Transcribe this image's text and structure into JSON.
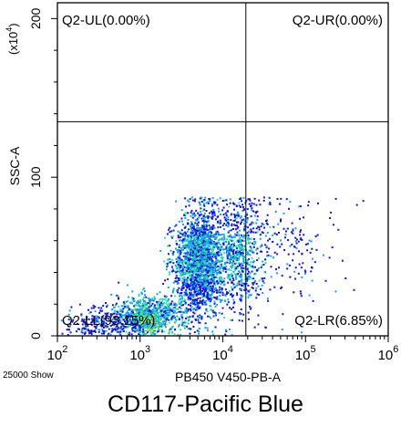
{
  "chart_data": {
    "type": "scatter",
    "style": "flow cytometry pseudocolor density plot",
    "x_axis": {
      "label": "PB450 V450-PB-A",
      "scale": "log",
      "range": [
        100,
        1000000
      ],
      "ticks": [
        {
          "value": 100,
          "base": "10",
          "exp": "2"
        },
        {
          "value": 1000,
          "base": "10",
          "exp": "3"
        },
        {
          "value": 10000,
          "base": "10",
          "exp": "4"
        },
        {
          "value": 100000,
          "base": "10",
          "exp": "5"
        },
        {
          "value": 1000000,
          "base": "10",
          "exp": "6"
        }
      ]
    },
    "y_axis": {
      "label": "SSC-A",
      "multiplier_label": "(x10",
      "multiplier_exp": "4",
      "multiplier_close": ")",
      "scale": "linear",
      "range": [
        0,
        210
      ],
      "ticks": [
        {
          "value": 0,
          "label": "0"
        },
        {
          "value": 100,
          "label": "100"
        },
        {
          "value": 200,
          "label": "200"
        }
      ]
    },
    "gates": {
      "vertical_x": 19000,
      "horizontal_y": 135
    },
    "quadrants": [
      {
        "label": "Q2-UL(0.00%)",
        "position": "top-left"
      },
      {
        "label": "Q2-UR(0.00%)",
        "position": "top-right"
      },
      {
        "label": "Q2-LL(93.15%)",
        "position": "bottom-left"
      },
      {
        "label": "Q2-LR(6.85%)",
        "position": "bottom-right"
      }
    ],
    "event_count_label": "25000 Show",
    "colors": {
      "low_density": "#1414d2",
      "mid_density": "#18a0e6",
      "high_density": "#28e6a0",
      "peak_density": "#ffe600"
    }
  },
  "caption": "CD117-Pacific Blue"
}
